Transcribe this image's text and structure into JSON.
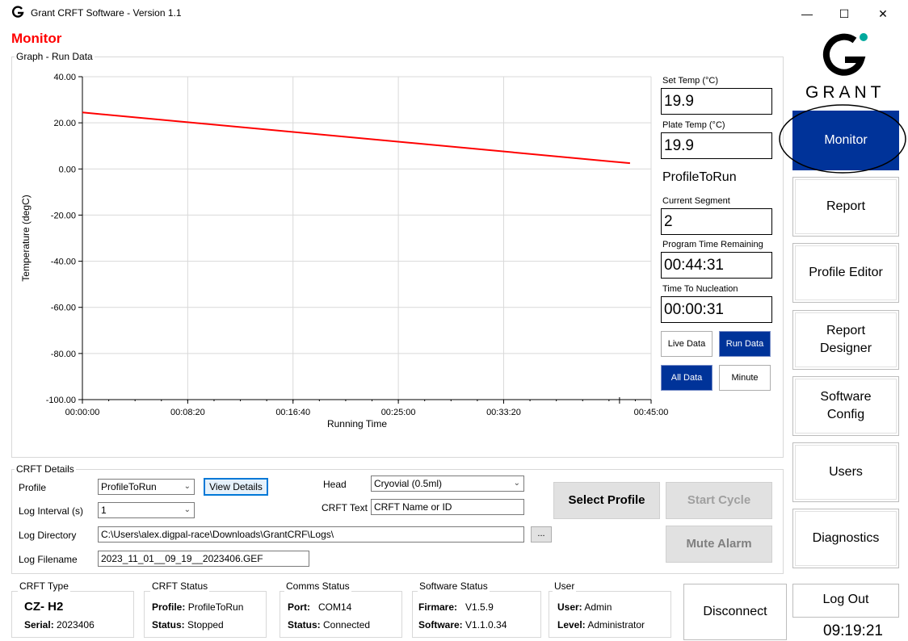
{
  "window": {
    "title": "Grant CRFT Software - Version 1.1",
    "minimize_glyph": "—",
    "maximize_glyph": "☐",
    "close_glyph": "✕"
  },
  "page_heading": "Monitor",
  "graph": {
    "group_title": "Graph - Run Data",
    "y_tick_labels": [
      "40.00",
      "20.00",
      "0.00",
      "-20.00",
      "-40.00",
      "-60.00",
      "-80.00",
      "-100.00"
    ],
    "x_tick_labels": [
      "00:00:00",
      "00:08:20",
      "00:16:40",
      "00:25:00",
      "00:33:20",
      "00:45:00"
    ]
  },
  "chart_data": {
    "type": "line",
    "xlabel": "Running Time",
    "ylabel": "Temperature (degC)",
    "ylim": [
      -100,
      40
    ],
    "xlim_seconds": [
      0,
      2700
    ],
    "x_ticks": [
      "00:00:00",
      "00:08:20",
      "00:16:40",
      "00:25:00",
      "00:33:20",
      "00:45:00"
    ],
    "y_ticks": [
      40,
      20,
      0,
      -20,
      -40,
      -60,
      -80,
      -100
    ],
    "grid": true,
    "series": [
      {
        "color": "#ff0000",
        "x_seconds": [
          0,
          2600
        ],
        "y": [
          24.5,
          2.5
        ]
      }
    ]
  },
  "readouts": {
    "set_temp_label": "Set Temp (°C)",
    "set_temp_value": "19.9",
    "plate_temp_label": "Plate Temp (°C)",
    "plate_temp_value": "19.9",
    "profile_name": "ProfileToRun",
    "current_segment_label": "Current Segment",
    "current_segment_value": "2",
    "program_time_label": "Program Time Remaining",
    "program_time_value": "00:44:31",
    "nucleation_label": "Time To Nucleation",
    "nucleation_value": "00:00:31",
    "live_data": "Live Data",
    "run_data": "Run Data",
    "all_data": "All Data",
    "minute": "Minute"
  },
  "logo": {
    "brand": "GRANT",
    "accent_color": "#00a99d"
  },
  "nav": {
    "monitor": "Monitor",
    "report": "Report",
    "profile_editor": "Profile Editor",
    "report_designer_line1": "Report",
    "report_designer_line2": "Designer",
    "software_config_line1": "Software",
    "software_config_line2": "Config",
    "users": "Users",
    "diagnostics": "Diagnostics",
    "log_out": "Log Out",
    "clock": "09:19:21"
  },
  "crft_details": {
    "group_title": "CRFT Details",
    "profile_label": "Profile",
    "profile_value": "ProfileToRun",
    "view_details": "View Details",
    "head_label": "Head",
    "head_value": "Cryovial (0.5ml)",
    "log_interval_label": "Log Interval (s)",
    "log_interval_value": "1",
    "crft_text_label": "CRFT Text",
    "crft_text_value": "CRFT Name or ID",
    "log_directory_label": "Log Directory",
    "log_directory_value": "C:\\Users\\alex.digpal-race\\Downloads\\GrantCRF\\Logs\\",
    "browse": "...",
    "log_filename_label": "Log Filename",
    "log_filename_value": "2023_11_01__09_19__2023406.GEF",
    "select_profile": "Select Profile",
    "start_cycle": "Start Cycle",
    "mute_alarm": "Mute Alarm"
  },
  "status": {
    "crft_type_title": "CRFT Type",
    "crft_type_value": "CZ- H2",
    "serial_label": "Serial:",
    "serial_value": "2023406",
    "crft_status_title": "CRFT Status",
    "profile_label": "Profile:",
    "profile_value": "ProfileToRun",
    "status_label": "Status:",
    "status_value": "Stopped",
    "comms_title": "Comms Status",
    "port_label": "Port:",
    "port_value": "COM14",
    "comms_status_label": "Status:",
    "comms_status_value": "Connected",
    "software_title": "Software Status",
    "firmware_label": "Firmare:",
    "firmware_value": "V1.5.9",
    "software_label": "Software:",
    "software_value": "V1.1.0.34",
    "user_title": "User",
    "user_label": "User:",
    "user_value": "Admin",
    "level_label": "Level:",
    "level_value": "Administrator",
    "disconnect": "Disconnect"
  }
}
